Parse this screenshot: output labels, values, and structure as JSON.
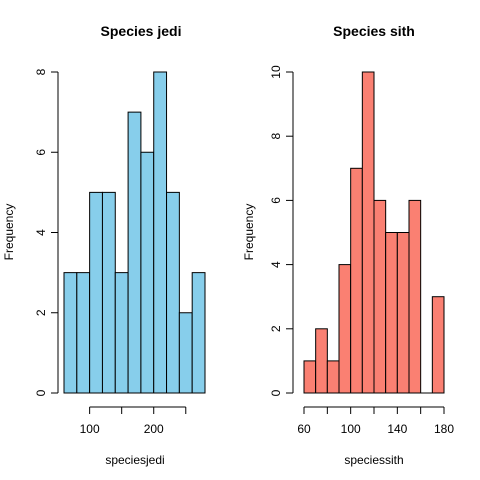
{
  "chart_data": [
    {
      "type": "bar",
      "title": "Species jedi",
      "xlabel": "speciesjedi",
      "ylabel": "Frequency",
      "color": "#87CEEB",
      "bins": [
        [
          60,
          80
        ],
        [
          80,
          100
        ],
        [
          100,
          120
        ],
        [
          120,
          140
        ],
        [
          140,
          160
        ],
        [
          160,
          180
        ],
        [
          180,
          200
        ],
        [
          200,
          220
        ],
        [
          220,
          240
        ],
        [
          240,
          260
        ],
        [
          260,
          280
        ]
      ],
      "values": [
        3,
        3,
        5,
        5,
        3,
        7,
        6,
        8,
        5,
        2,
        3
      ],
      "xlim": [
        60,
        280
      ],
      "ylim": [
        0,
        8
      ],
      "xticks": [
        100,
        200
      ],
      "xtick_labels": [
        "100",
        "200"
      ],
      "xtick_marks": [
        100,
        150,
        200,
        250
      ],
      "yticks": [
        0,
        2,
        4,
        6,
        8
      ],
      "ytick_labels": [
        "0",
        "2",
        "4",
        "6",
        "8"
      ],
      "grid": false
    },
    {
      "type": "bar",
      "title": "Species sith",
      "xlabel": "speciessith",
      "ylabel": "Frequency",
      "color": "#FA8072",
      "bins": [
        [
          60,
          70
        ],
        [
          70,
          80
        ],
        [
          80,
          90
        ],
        [
          90,
          100
        ],
        [
          100,
          110
        ],
        [
          110,
          120
        ],
        [
          120,
          130
        ],
        [
          130,
          140
        ],
        [
          140,
          150
        ],
        [
          150,
          160
        ],
        [
          160,
          170
        ],
        [
          170,
          180
        ]
      ],
      "values": [
        1,
        2,
        1,
        4,
        7,
        10,
        6,
        5,
        5,
        6,
        0,
        3
      ],
      "xlim": [
        60,
        180
      ],
      "ylim": [
        0,
        10
      ],
      "xticks": [
        60,
        100,
        140,
        180
      ],
      "xtick_labels": [
        "60",
        "100",
        "140",
        "180"
      ],
      "xtick_marks": [
        60,
        80,
        100,
        120,
        140,
        160,
        180
      ],
      "yticks": [
        0,
        2,
        4,
        6,
        8,
        10
      ],
      "ytick_labels": [
        "0",
        "2",
        "4",
        "6",
        "8",
        "10"
      ],
      "grid": false
    }
  ]
}
